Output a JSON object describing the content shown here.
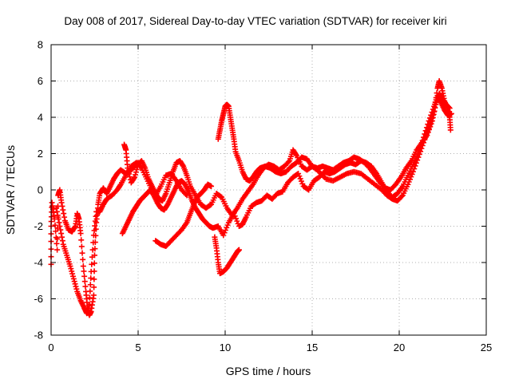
{
  "chart_data": {
    "type": "scatter",
    "title": "Day 008 of 2017, Sidereal Day-to-day VTEC variation (SDTVAR) for receiver kiri",
    "xlabel": "GPS time / hours",
    "ylabel": "SDTVAR / TECUs",
    "xlim": [
      0,
      25
    ],
    "ylim": [
      -8,
      8
    ],
    "xticks": [
      "0",
      "5",
      "10",
      "15",
      "20",
      "25"
    ],
    "yticks": [
      "-8",
      "-6",
      "-4",
      "-2",
      "0",
      "2",
      "4",
      "6",
      "8"
    ],
    "grid": true,
    "marker": "+",
    "color": "#ff0000",
    "series": [
      {
        "points": [
          [
            0.0,
            -4.1
          ],
          [
            0.0,
            -2.0
          ],
          [
            0.05,
            -0.7
          ],
          [
            0.2,
            -1.6
          ],
          [
            0.35,
            -3.3
          ],
          [
            0.4,
            -0.3
          ],
          [
            0.5,
            0.0
          ],
          [
            0.6,
            -0.7
          ],
          [
            0.8,
            -1.7
          ],
          [
            1.0,
            -2.2
          ],
          [
            1.2,
            -2.3
          ],
          [
            1.4,
            -2.0
          ],
          [
            1.5,
            -1.3
          ],
          [
            1.6,
            -1.6
          ],
          [
            1.7,
            -2.4
          ],
          [
            1.85,
            -4.2
          ],
          [
            2.0,
            -5.6
          ],
          [
            2.1,
            -6.6
          ],
          [
            2.2,
            -6.9
          ],
          [
            2.3,
            -6.7
          ],
          [
            2.45,
            -5.8
          ],
          [
            2.5,
            -3.6
          ],
          [
            2.6,
            -1.8
          ],
          [
            2.7,
            -0.8
          ],
          [
            2.8,
            -0.2
          ],
          [
            3.0,
            0.1
          ],
          [
            3.2,
            -0.2
          ],
          [
            3.4,
            0.2
          ],
          [
            3.6,
            0.6
          ],
          [
            3.8,
            0.9
          ],
          [
            4.0,
            1.1
          ],
          [
            4.3,
            0.9
          ],
          [
            4.6,
            1.1
          ],
          [
            4.8,
            1.3
          ],
          [
            5.0,
            1.5
          ]
        ]
      },
      {
        "points": [
          [
            0.3,
            -1.0
          ],
          [
            0.5,
            -2.0
          ],
          [
            0.7,
            -3.0
          ],
          [
            0.9,
            -3.6
          ],
          [
            1.1,
            -4.2
          ],
          [
            1.3,
            -4.9
          ],
          [
            1.5,
            -5.6
          ],
          [
            1.7,
            -6.1
          ],
          [
            1.9,
            -6.5
          ],
          [
            2.05,
            -6.8
          ],
          [
            2.2,
            -6.3
          ],
          [
            2.3,
            -4.5
          ],
          [
            2.45,
            -2.5
          ],
          [
            2.6,
            -1.2
          ],
          [
            2.8,
            -1.2
          ],
          [
            3.0,
            -0.8
          ],
          [
            3.2,
            -0.5
          ],
          [
            3.5,
            -0.3
          ],
          [
            3.8,
            0.0
          ],
          [
            4.0,
            0.3
          ],
          [
            4.3,
            0.8
          ],
          [
            4.6,
            1.3
          ],
          [
            4.9,
            1.5
          ],
          [
            5.2,
            1.2
          ],
          [
            5.5,
            0.6
          ],
          [
            5.8,
            0.0
          ],
          [
            6.0,
            -0.3
          ],
          [
            6.3,
            0.2
          ],
          [
            6.6,
            0.8
          ],
          [
            6.9,
            0.9
          ],
          [
            7.2,
            0.5
          ],
          [
            7.5,
            0.0
          ],
          [
            7.8,
            -0.3
          ]
        ]
      },
      {
        "points": [
          [
            4.2,
            2.5
          ],
          [
            4.3,
            2.2
          ],
          [
            4.4,
            1.2
          ],
          [
            4.6,
            0.4
          ],
          [
            4.8,
            0.7
          ],
          [
            5.0,
            1.4
          ],
          [
            5.2,
            1.6
          ],
          [
            5.4,
            1.2
          ],
          [
            5.6,
            0.6
          ],
          [
            5.8,
            0.2
          ],
          [
            6.0,
            -0.2
          ],
          [
            6.2,
            -0.5
          ],
          [
            6.4,
            -0.6
          ],
          [
            6.6,
            -0.2
          ],
          [
            6.8,
            0.4
          ],
          [
            7.0,
            1.0
          ],
          [
            7.2,
            1.5
          ],
          [
            7.4,
            1.6
          ],
          [
            7.6,
            1.3
          ],
          [
            7.8,
            0.8
          ],
          [
            8.0,
            0.2
          ],
          [
            8.3,
            -0.3
          ],
          [
            8.6,
            -0.8
          ],
          [
            8.9,
            -1.0
          ],
          [
            9.2,
            -0.8
          ],
          [
            9.5,
            -0.2
          ],
          [
            9.8,
            -0.4
          ],
          [
            10.1,
            -1.0
          ],
          [
            10.4,
            -1.4
          ],
          [
            10.7,
            -1.0
          ],
          [
            11.0,
            -0.5
          ],
          [
            11.3,
            -0.1
          ],
          [
            11.6,
            0.3
          ],
          [
            11.9,
            0.8
          ],
          [
            12.2,
            1.2
          ],
          [
            12.5,
            1.4
          ],
          [
            12.8,
            1.3
          ],
          [
            13.1,
            1.1
          ],
          [
            13.4,
            1.3
          ],
          [
            13.7,
            1.6
          ],
          [
            13.9,
            2.2
          ],
          [
            14.1,
            1.9
          ],
          [
            14.4,
            1.3
          ],
          [
            14.7,
            1.1
          ],
          [
            15.0,
            1.3
          ],
          [
            15.4,
            1.0
          ],
          [
            15.8,
            0.6
          ],
          [
            16.2,
            0.5
          ],
          [
            16.6,
            0.7
          ],
          [
            17.0,
            0.9
          ],
          [
            17.4,
            1.0
          ],
          [
            17.8,
            0.9
          ],
          [
            18.2,
            0.6
          ],
          [
            18.6,
            0.3
          ],
          [
            19.0,
            0.0
          ],
          [
            19.3,
            -0.3
          ],
          [
            19.6,
            -0.5
          ],
          [
            19.9,
            -0.6
          ],
          [
            20.2,
            -0.3
          ],
          [
            20.5,
            0.3
          ],
          [
            20.8,
            1.0
          ],
          [
            21.1,
            1.8
          ],
          [
            21.4,
            2.6
          ],
          [
            21.7,
            3.4
          ],
          [
            22.0,
            4.3
          ],
          [
            22.2,
            5.6
          ],
          [
            22.3,
            6.0
          ],
          [
            22.45,
            5.6
          ],
          [
            22.6,
            4.9
          ],
          [
            22.8,
            4.4
          ],
          [
            22.9,
            4.0
          ],
          [
            22.95,
            3.3
          ]
        ]
      },
      {
        "points": [
          [
            4.1,
            -2.4
          ],
          [
            4.3,
            -2.0
          ],
          [
            4.5,
            -1.6
          ],
          [
            4.7,
            -1.2
          ],
          [
            4.9,
            -0.9
          ],
          [
            5.1,
            -0.6
          ],
          [
            5.3,
            -0.4
          ],
          [
            5.5,
            -0.2
          ],
          [
            5.7,
            0.0
          ],
          [
            5.9,
            -0.3
          ],
          [
            6.1,
            -0.7
          ],
          [
            6.3,
            -1.0
          ],
          [
            6.5,
            -1.1
          ],
          [
            6.7,
            -0.8
          ],
          [
            6.9,
            -0.4
          ],
          [
            7.1,
            0.0
          ],
          [
            7.3,
            0.4
          ],
          [
            7.5,
            0.5
          ],
          [
            7.7,
            0.3
          ],
          [
            7.9,
            -0.1
          ],
          [
            8.1,
            -0.6
          ],
          [
            8.3,
            -1.0
          ],
          [
            8.5,
            -1.3
          ],
          [
            8.7,
            -1.6
          ],
          [
            8.9,
            -1.8
          ],
          [
            9.1,
            -2.0
          ],
          [
            9.3,
            -2.1
          ],
          [
            9.6,
            -2.0
          ],
          [
            9.9,
            -2.5
          ],
          [
            10.2,
            -1.8
          ],
          [
            10.5,
            -1.3
          ],
          [
            10.8,
            -2.0
          ],
          [
            11.0,
            -1.9
          ],
          [
            11.2,
            -1.5
          ],
          [
            11.5,
            -0.9
          ],
          [
            11.8,
            -0.7
          ],
          [
            12.1,
            -0.6
          ],
          [
            12.4,
            -0.3
          ],
          [
            12.7,
            -0.5
          ],
          [
            13.0,
            -0.2
          ],
          [
            13.3,
            -0.1
          ],
          [
            13.6,
            0.4
          ],
          [
            13.9,
            0.7
          ],
          [
            14.2,
            0.9
          ],
          [
            14.5,
            0.2
          ],
          [
            14.8,
            0.0
          ],
          [
            15.1,
            0.5
          ],
          [
            15.4,
            0.7
          ],
          [
            15.7,
            1.0
          ],
          [
            16.0,
            0.9
          ],
          [
            16.3,
            1.0
          ],
          [
            16.6,
            1.2
          ],
          [
            16.9,
            1.4
          ],
          [
            17.2,
            1.5
          ],
          [
            17.5,
            1.4
          ],
          [
            17.8,
            1.6
          ],
          [
            18.1,
            1.5
          ],
          [
            18.4,
            1.3
          ],
          [
            18.7,
            0.9
          ],
          [
            19.0,
            0.4
          ],
          [
            19.3,
            -0.1
          ],
          [
            19.6,
            -0.4
          ],
          [
            19.9,
            -0.2
          ],
          [
            20.2,
            0.2
          ],
          [
            20.5,
            0.8
          ],
          [
            20.8,
            1.4
          ],
          [
            21.1,
            2.0
          ],
          [
            21.4,
            2.9
          ],
          [
            21.7,
            3.8
          ],
          [
            22.0,
            4.6
          ],
          [
            22.2,
            5.2
          ],
          [
            22.4,
            4.8
          ],
          [
            22.6,
            4.4
          ],
          [
            22.8,
            4.1
          ],
          [
            23.0,
            4.2
          ]
        ]
      },
      {
        "points": [
          [
            6.0,
            -2.8
          ],
          [
            6.3,
            -3.0
          ],
          [
            6.6,
            -3.1
          ],
          [
            6.9,
            -2.8
          ],
          [
            7.2,
            -2.5
          ],
          [
            7.5,
            -2.2
          ],
          [
            7.8,
            -1.8
          ],
          [
            8.0,
            -1.3
          ],
          [
            8.2,
            -0.8
          ],
          [
            8.4,
            -0.4
          ],
          [
            8.6,
            -0.2
          ],
          [
            8.8,
            0.0
          ],
          [
            9.0,
            0.3
          ],
          [
            9.2,
            0.2
          ]
        ]
      },
      {
        "points": [
          [
            9.4,
            -2.6
          ],
          [
            9.5,
            -3.2
          ],
          [
            9.6,
            -4.0
          ],
          [
            9.7,
            -4.6
          ],
          [
            9.9,
            -4.5
          ],
          [
            10.1,
            -4.3
          ],
          [
            10.3,
            -4.0
          ],
          [
            10.5,
            -3.7
          ],
          [
            10.7,
            -3.4
          ],
          [
            10.8,
            -3.3
          ]
        ]
      },
      {
        "points": [
          [
            9.6,
            2.8
          ],
          [
            9.7,
            3.3
          ],
          [
            9.8,
            3.8
          ],
          [
            9.9,
            4.2
          ],
          [
            10.0,
            4.6
          ],
          [
            10.1,
            4.7
          ],
          [
            10.2,
            4.6
          ],
          [
            10.3,
            4.0
          ],
          [
            10.4,
            3.4
          ],
          [
            10.5,
            2.8
          ],
          [
            10.6,
            2.1
          ],
          [
            10.8,
            1.6
          ],
          [
            11.0,
            1.0
          ],
          [
            11.2,
            0.6
          ],
          [
            11.4,
            0.5
          ],
          [
            11.6,
            0.7
          ],
          [
            11.8,
            1.0
          ],
          [
            12.0,
            1.2
          ],
          [
            12.3,
            1.3
          ],
          [
            12.6,
            1.2
          ],
          [
            12.9,
            1.0
          ],
          [
            13.2,
            0.9
          ],
          [
            13.5,
            1.0
          ],
          [
            13.8,
            1.3
          ],
          [
            14.1,
            1.5
          ],
          [
            14.4,
            1.8
          ],
          [
            14.7,
            1.7
          ],
          [
            15.0,
            1.3
          ],
          [
            15.3,
            1.2
          ],
          [
            15.6,
            1.3
          ],
          [
            15.9,
            1.2
          ],
          [
            16.2,
            1.1
          ],
          [
            16.5,
            1.3
          ],
          [
            16.8,
            1.5
          ],
          [
            17.1,
            1.6
          ],
          [
            17.4,
            1.8
          ],
          [
            17.7,
            1.7
          ],
          [
            18.0,
            1.5
          ],
          [
            18.3,
            1.2
          ],
          [
            18.6,
            0.8
          ],
          [
            18.9,
            0.4
          ],
          [
            19.2,
            0.1
          ],
          [
            19.5,
            0.0
          ],
          [
            19.8,
            0.3
          ],
          [
            20.1,
            0.7
          ],
          [
            20.4,
            1.2
          ],
          [
            20.7,
            1.6
          ],
          [
            21.0,
            2.2
          ],
          [
            21.3,
            2.6
          ],
          [
            21.6,
            3.0
          ],
          [
            21.9,
            3.8
          ],
          [
            22.1,
            4.7
          ],
          [
            22.3,
            5.3
          ],
          [
            22.5,
            5.0
          ],
          [
            22.7,
            4.7
          ],
          [
            22.9,
            4.5
          ]
        ]
      }
    ]
  }
}
